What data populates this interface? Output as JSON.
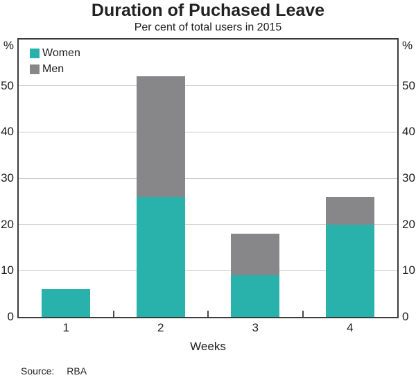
{
  "chart_data": {
    "type": "bar",
    "stacked": true,
    "title": "Duration of Puchased Leave",
    "subtitle": "Per cent of total users in 2015",
    "categories": [
      "1",
      "2",
      "3",
      "4"
    ],
    "series": [
      {
        "name": "Women",
        "color": "#29b1ab",
        "values": [
          6,
          26,
          9,
          20
        ]
      },
      {
        "name": "Men",
        "color": "#87878a",
        "values": [
          0,
          26,
          9,
          6
        ]
      }
    ],
    "xlabel": "Weeks",
    "unit_label": "%",
    "ylim": [
      0,
      60
    ],
    "yticks": [
      0,
      10,
      20,
      30,
      40,
      50
    ],
    "grid": true,
    "legend_position": "top-left"
  },
  "source": {
    "label": "Source:",
    "value": "RBA"
  }
}
